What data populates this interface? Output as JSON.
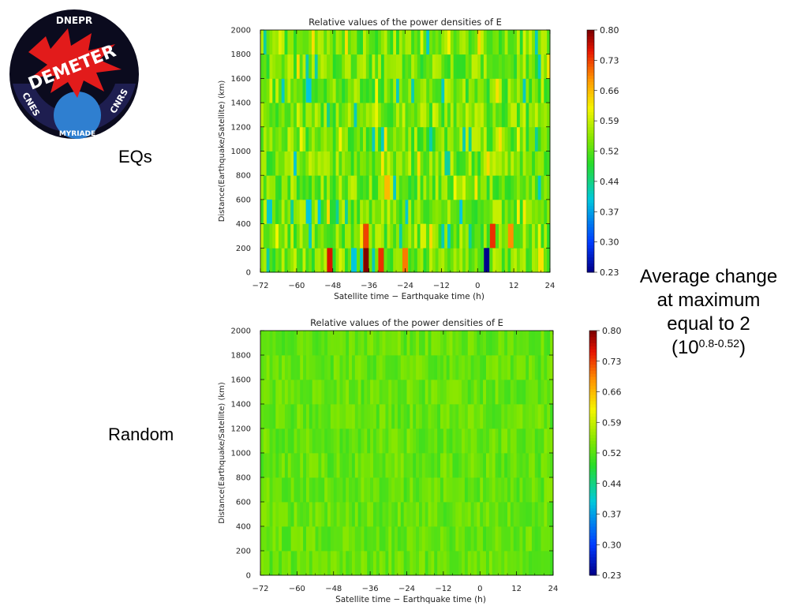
{
  "logo": {
    "top_text": "DNEPR",
    "main_text": "DEMETER",
    "left_text": "CNES",
    "right_text": "CNRS",
    "bottom_text": "MYRIADE",
    "colors": {
      "outer_ring": "#1e1e50",
      "sky": "#0b0b1e",
      "burst": "#e21b1b",
      "planet": "#2f7fd0",
      "ring_text": "#ffffff"
    }
  },
  "labels": {
    "eqs": "EQs",
    "random": "Random"
  },
  "note": {
    "line1": "Average change",
    "line2": "at maximum",
    "line3": "equal to 2",
    "paren_open": "(10",
    "exponent": "0.8-0.52",
    "paren_close": ")"
  },
  "colorbar": {
    "ticks": [
      "0.80",
      "0.73",
      "0.66",
      "0.59",
      "0.52",
      "0.44",
      "0.37",
      "0.30",
      "0.23"
    ],
    "min": 0.23,
    "max": 0.8
  },
  "chart_data": [
    {
      "type": "heatmap",
      "title": "Relative values of the power densities of E",
      "xlabel": "Satellite time − Earthquake time (h)",
      "ylabel": "Distance(Earthquake/Satellite) (km)",
      "xlim": [
        -72,
        24
      ],
      "ylim": [
        0,
        2000
      ],
      "xticks": [
        "−72",
        "−60",
        "−48",
        "−36",
        "−24",
        "−12",
        "0",
        "12",
        "24"
      ],
      "yticks": [
        "0",
        "200",
        "400",
        "600",
        "800",
        "1000",
        "1200",
        "1400",
        "1600",
        "1800",
        "2000"
      ],
      "colorscale": [
        0.23,
        0.8
      ],
      "baseline": 0.52,
      "rows_bin_km": 200,
      "hotspots": [
        {
          "time_h": -49,
          "distance_km": 100,
          "value": 0.76
        },
        {
          "time_h": -37,
          "distance_km": 100,
          "value": 0.8
        },
        {
          "time_h": -37,
          "distance_km": 300,
          "value": 0.73
        },
        {
          "time_h": -32,
          "distance_km": 100,
          "value": 0.74
        },
        {
          "time_h": -30,
          "distance_km": 700,
          "value": 0.66
        },
        {
          "time_h": -24,
          "distance_km": 100,
          "value": 0.7
        },
        {
          "time_h": -18,
          "distance_km": 300,
          "value": 0.6
        },
        {
          "time_h": 3,
          "distance_km": 100,
          "value": 0.23
        },
        {
          "time_h": 5,
          "distance_km": 300,
          "value": 0.74
        },
        {
          "time_h": 11,
          "distance_km": 300,
          "value": 0.69
        },
        {
          "time_h": 21,
          "distance_km": 100,
          "value": 0.63
        },
        {
          "time_h": -56,
          "distance_km": 500,
          "value": 0.4
        },
        {
          "time_h": -69,
          "distance_km": 500,
          "value": 0.41
        },
        {
          "time_h": -56,
          "distance_km": 1500,
          "value": 0.4
        },
        {
          "time_h": -41,
          "distance_km": 100,
          "value": 0.4
        },
        {
          "time_h": -10,
          "distance_km": 900,
          "value": 0.43
        }
      ]
    },
    {
      "type": "heatmap",
      "title": "Relative values of the power densities of E",
      "xlabel": "Satellite time − Earthquake time (h)",
      "ylabel": "Distance(Earthquake/Satellite) (km)",
      "xlim": [
        -72,
        24
      ],
      "ylim": [
        0,
        2000
      ],
      "xticks": [
        "−72",
        "−60",
        "−48",
        "−36",
        "−24",
        "−12",
        "0",
        "12",
        "24"
      ],
      "yticks": [
        "0",
        "200",
        "400",
        "600",
        "800",
        "1000",
        "1200",
        "1400",
        "1600",
        "1800",
        "2000"
      ],
      "colorscale": [
        0.23,
        0.8
      ],
      "baseline": 0.52,
      "rows_bin_km": 200,
      "value_range": [
        0.5,
        0.55
      ]
    }
  ]
}
